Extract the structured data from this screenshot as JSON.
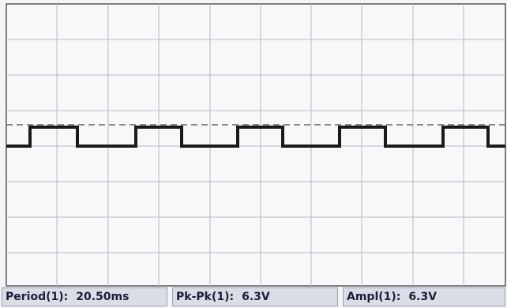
{
  "measurements": [
    {
      "label": "Period(1):",
      "value": "20.50ms"
    },
    {
      "label": "Pk-Pk(1):",
      "value": "6.3V"
    },
    {
      "label": "Ampl(1):",
      "value": "6.3V"
    }
  ]
}
